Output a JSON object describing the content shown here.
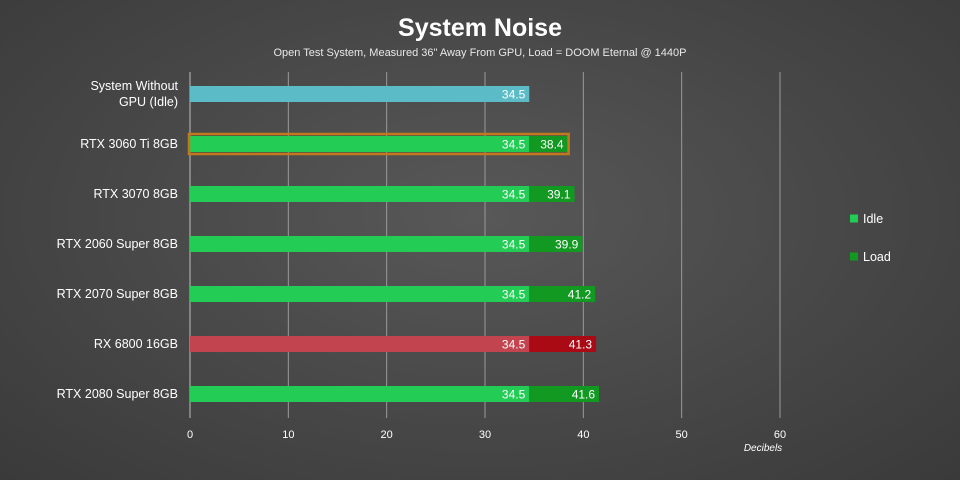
{
  "chart_data": {
    "type": "bar",
    "orientation": "horizontal",
    "stacked": true,
    "title": "System Noise",
    "subtitle": "Open Test System, Measured 36\" Away From GPU, Load = DOOM Eternal @ 1440P",
    "xlabel": "Decibels",
    "xlim": [
      0,
      60
    ],
    "xticks": [
      0,
      10,
      20,
      30,
      40,
      50,
      60
    ],
    "grid": true,
    "legend_position": "right",
    "categories": [
      {
        "label_lines": [
          "System Without",
          "GPU (Idle)"
        ],
        "idle": 34.5,
        "load": null,
        "style": "baseline"
      },
      {
        "label_lines": [
          "RTX 3060 Ti 8GB"
        ],
        "idle": 34.5,
        "load": 38.4,
        "style": "highlight"
      },
      {
        "label_lines": [
          "RTX 3070 8GB"
        ],
        "idle": 34.5,
        "load": 39.1,
        "style": "nvidia"
      },
      {
        "label_lines": [
          "RTX 2060 Super 8GB"
        ],
        "idle": 34.5,
        "load": 39.9,
        "style": "nvidia"
      },
      {
        "label_lines": [
          "RTX 2070 Super 8GB"
        ],
        "idle": 34.5,
        "load": 41.2,
        "style": "nvidia"
      },
      {
        "label_lines": [
          "RX 6800 16GB"
        ],
        "idle": 34.5,
        "load": 41.3,
        "style": "amd"
      },
      {
        "label_lines": [
          "RTX 2080 Super 8GB"
        ],
        "idle": 34.5,
        "load": 41.6,
        "style": "nvidia"
      }
    ],
    "series": [
      {
        "name": "Idle",
        "color": "#22cc55"
      },
      {
        "name": "Load",
        "color": "#119922"
      }
    ],
    "colors": {
      "baseline": "#5bbcc8",
      "idle": "#22cc55",
      "load": "#119922",
      "amd_idle": "#c2444f",
      "amd_load": "#aa0a14",
      "highlight_border": "#c07a1a",
      "grid": "#9a9a9a"
    }
  }
}
